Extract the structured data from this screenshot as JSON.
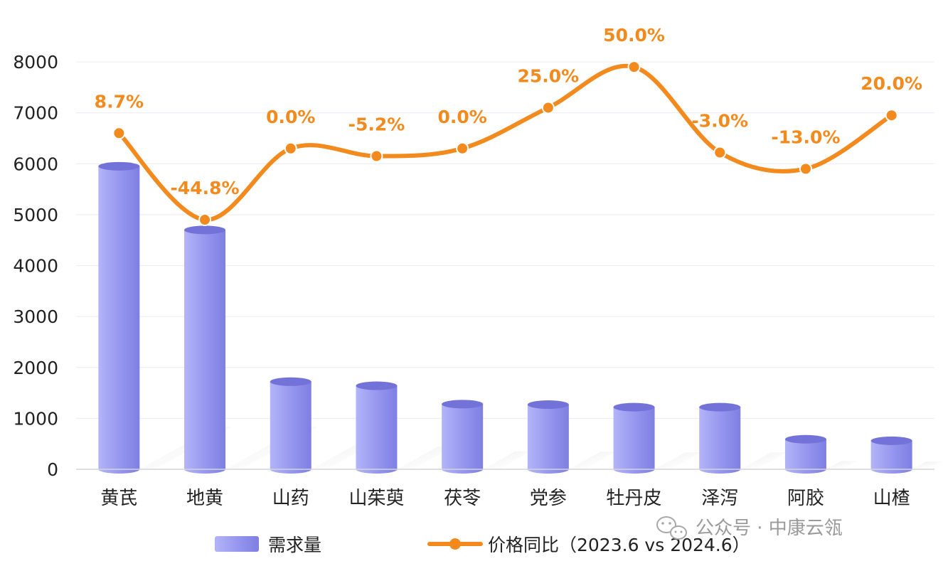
{
  "chart_data": {
    "type": "bar",
    "categories": [
      "黄芪",
      "地黄",
      "山药",
      "山茱萸",
      "茯苓",
      "党参",
      "牡丹皮",
      "泽泻",
      "阿胶",
      "山楂"
    ],
    "series": [
      {
        "name": "需求量",
        "type": "bar",
        "values": [
          5950,
          4700,
          1720,
          1640,
          1280,
          1270,
          1220,
          1220,
          590,
          560
        ]
      },
      {
        "name": "价格同比（2023.6 vs 2024.6）",
        "type": "line",
        "values": [
          6600,
          4900,
          6300,
          6150,
          6300,
          7100,
          7900,
          6220,
          5900,
          6950
        ],
        "labels": [
          "8.7%",
          "-44.8%",
          "0.0%",
          "-5.2%",
          "0.0%",
          "25.0%",
          "50.0%",
          "-3.0%",
          "-13.0%",
          "20.0%"
        ]
      }
    ],
    "yticks": [
      "0",
      "1000",
      "2000",
      "3000",
      "4000",
      "5000",
      "6000",
      "7000",
      "8000"
    ],
    "ylim": [
      0,
      8000
    ],
    "grid": true,
    "legend_position": "bottom",
    "colors": {
      "bar": "#8d8cec",
      "bar_top": "#7372d8",
      "line": "#f28a1e",
      "label": "#f28a1e"
    }
  },
  "watermark": {
    "icon": "wechat-icon",
    "text": "公众号 · 中康云瓴"
  }
}
